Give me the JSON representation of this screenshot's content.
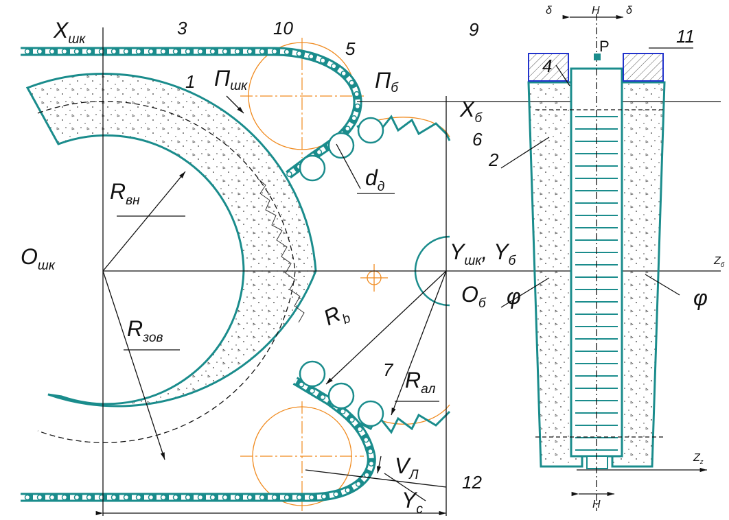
{
  "labels": {
    "x_shk": {
      "text": "X",
      "sub": "шк"
    },
    "n3": {
      "text": "3"
    },
    "n10": {
      "text": "10"
    },
    "n5": {
      "text": "5"
    },
    "n9": {
      "text": "9"
    },
    "n1": {
      "text": "1"
    },
    "p_shk": {
      "text": "П",
      "sub": "шк"
    },
    "p_b": {
      "text": "П",
      "sub": "б"
    },
    "x_b": {
      "text": "X",
      "sub": "б"
    },
    "n6": {
      "text": "6"
    },
    "d_d": {
      "text": "d",
      "sub": "д"
    },
    "r_vn": {
      "text": "R",
      "sub": "вн"
    },
    "o_shk": {
      "text": "O",
      "sub": "шк"
    },
    "y_shk": {
      "text": "Y",
      "sub": "шк"
    },
    "y_b": {
      "text": "Y",
      "sub": "б"
    },
    "o_b": {
      "text": "O",
      "sub": "б"
    },
    "r_b": {
      "text": "R",
      "sub": "b"
    },
    "n7": {
      "text": "7"
    },
    "r_al": {
      "text": "R",
      "sub": "ал"
    },
    "r_zov": {
      "text": "R",
      "sub": "зов"
    },
    "v_l": {
      "text": "V",
      "sub": "Л"
    },
    "n12": {
      "text": "12"
    },
    "y_c": {
      "text": "Y",
      "sub": "c"
    },
    "delta_l": {
      "text": "δ"
    },
    "h_top": {
      "text": "H"
    },
    "delta_r": {
      "text": "δ"
    },
    "n4": {
      "text": "4"
    },
    "n11": {
      "text": "11"
    },
    "p": {
      "text": "P"
    },
    "n2": {
      "text": "2"
    },
    "phi_l": {
      "text": "φ"
    },
    "phi_r": {
      "text": "φ"
    },
    "z_b": {
      "text": "Z",
      "sub": "б"
    },
    "z_z": {
      "text": "Z",
      "sub": "z"
    },
    "h_bot": {
      "text": "H"
    }
  }
}
